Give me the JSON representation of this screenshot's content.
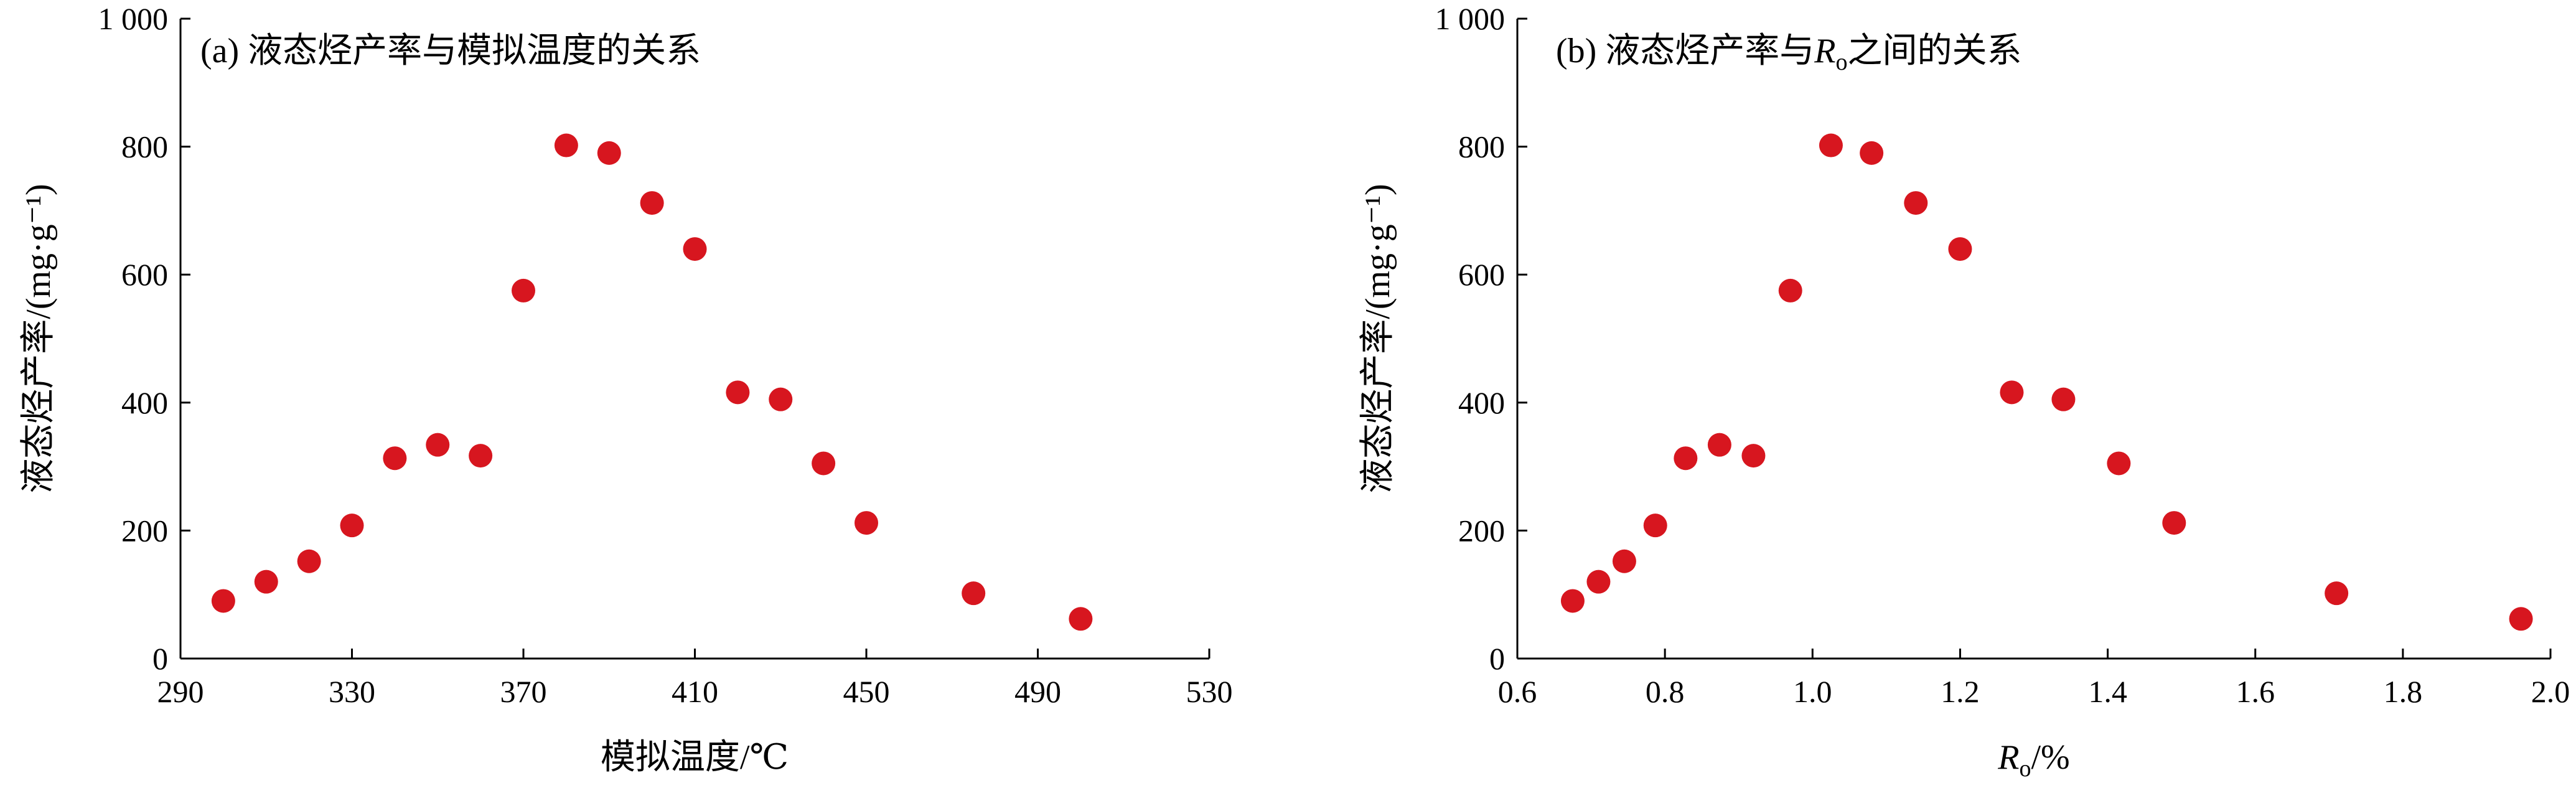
{
  "chart_data": [
    {
      "type": "scatter",
      "title": "(a) 液态烃产率与模拟温度的关系",
      "xlabel": "模拟温度/℃",
      "ylabel": "液态烃产率/(mg·g⁻¹)",
      "xlim": [
        290,
        530
      ],
      "ylim": [
        0,
        1000
      ],
      "xticks": [
        290,
        330,
        370,
        410,
        450,
        490,
        530
      ],
      "xtick_labels": [
        "290",
        "330",
        "370",
        "410",
        "450",
        "490",
        "530"
      ],
      "yticks": [
        0,
        200,
        400,
        600,
        800,
        1000
      ],
      "ytick_labels": [
        "0",
        "200",
        "400",
        "600",
        "800",
        "1 000"
      ],
      "grid": false,
      "color": "#d7161f",
      "x": [
        300,
        310,
        320,
        330,
        340,
        350,
        360,
        370,
        380,
        390,
        400,
        410,
        420,
        430,
        440,
        450,
        475,
        500
      ],
      "y": [
        90,
        120,
        152,
        208,
        313,
        334,
        317,
        575,
        802,
        790,
        712,
        640,
        416,
        405,
        305,
        212,
        102,
        62
      ]
    },
    {
      "type": "scatter",
      "title": "(b) 液态烃产率与Ro之间的关系",
      "title_parts": {
        "pre": "(b) 液态烃产率与",
        "var": "R",
        "sub": "o",
        "post": "之间的关系"
      },
      "xlabel": "Ro/%",
      "xlabel_parts": {
        "var": "R",
        "sub": "o",
        "post": "/%"
      },
      "ylabel": "液态烃产率/(mg·g⁻¹)",
      "xlim": [
        0.6,
        2.0
      ],
      "ylim": [
        0,
        1000
      ],
      "xticks": [
        0.6,
        0.8,
        1.0,
        1.2,
        1.4,
        1.6,
        1.8,
        2.0
      ],
      "xtick_labels": [
        "0.6",
        "0.8",
        "1.0",
        "1.2",
        "1.4",
        "1.6",
        "1.8",
        "2.0"
      ],
      "yticks": [
        0,
        200,
        400,
        600,
        800,
        1000
      ],
      "ytick_labels": [
        "0",
        "200",
        "400",
        "600",
        "800",
        "1 000"
      ],
      "grid": false,
      "color": "#d7161f",
      "x": [
        0.675,
        0.71,
        0.745,
        0.787,
        0.828,
        0.874,
        0.92,
        0.97,
        1.025,
        1.08,
        1.14,
        1.2,
        1.27,
        1.34,
        1.415,
        1.49,
        1.71,
        1.96
      ],
      "y": [
        90,
        120,
        152,
        208,
        313,
        334,
        317,
        575,
        802,
        790,
        712,
        640,
        416,
        405,
        305,
        212,
        102,
        62
      ]
    }
  ]
}
